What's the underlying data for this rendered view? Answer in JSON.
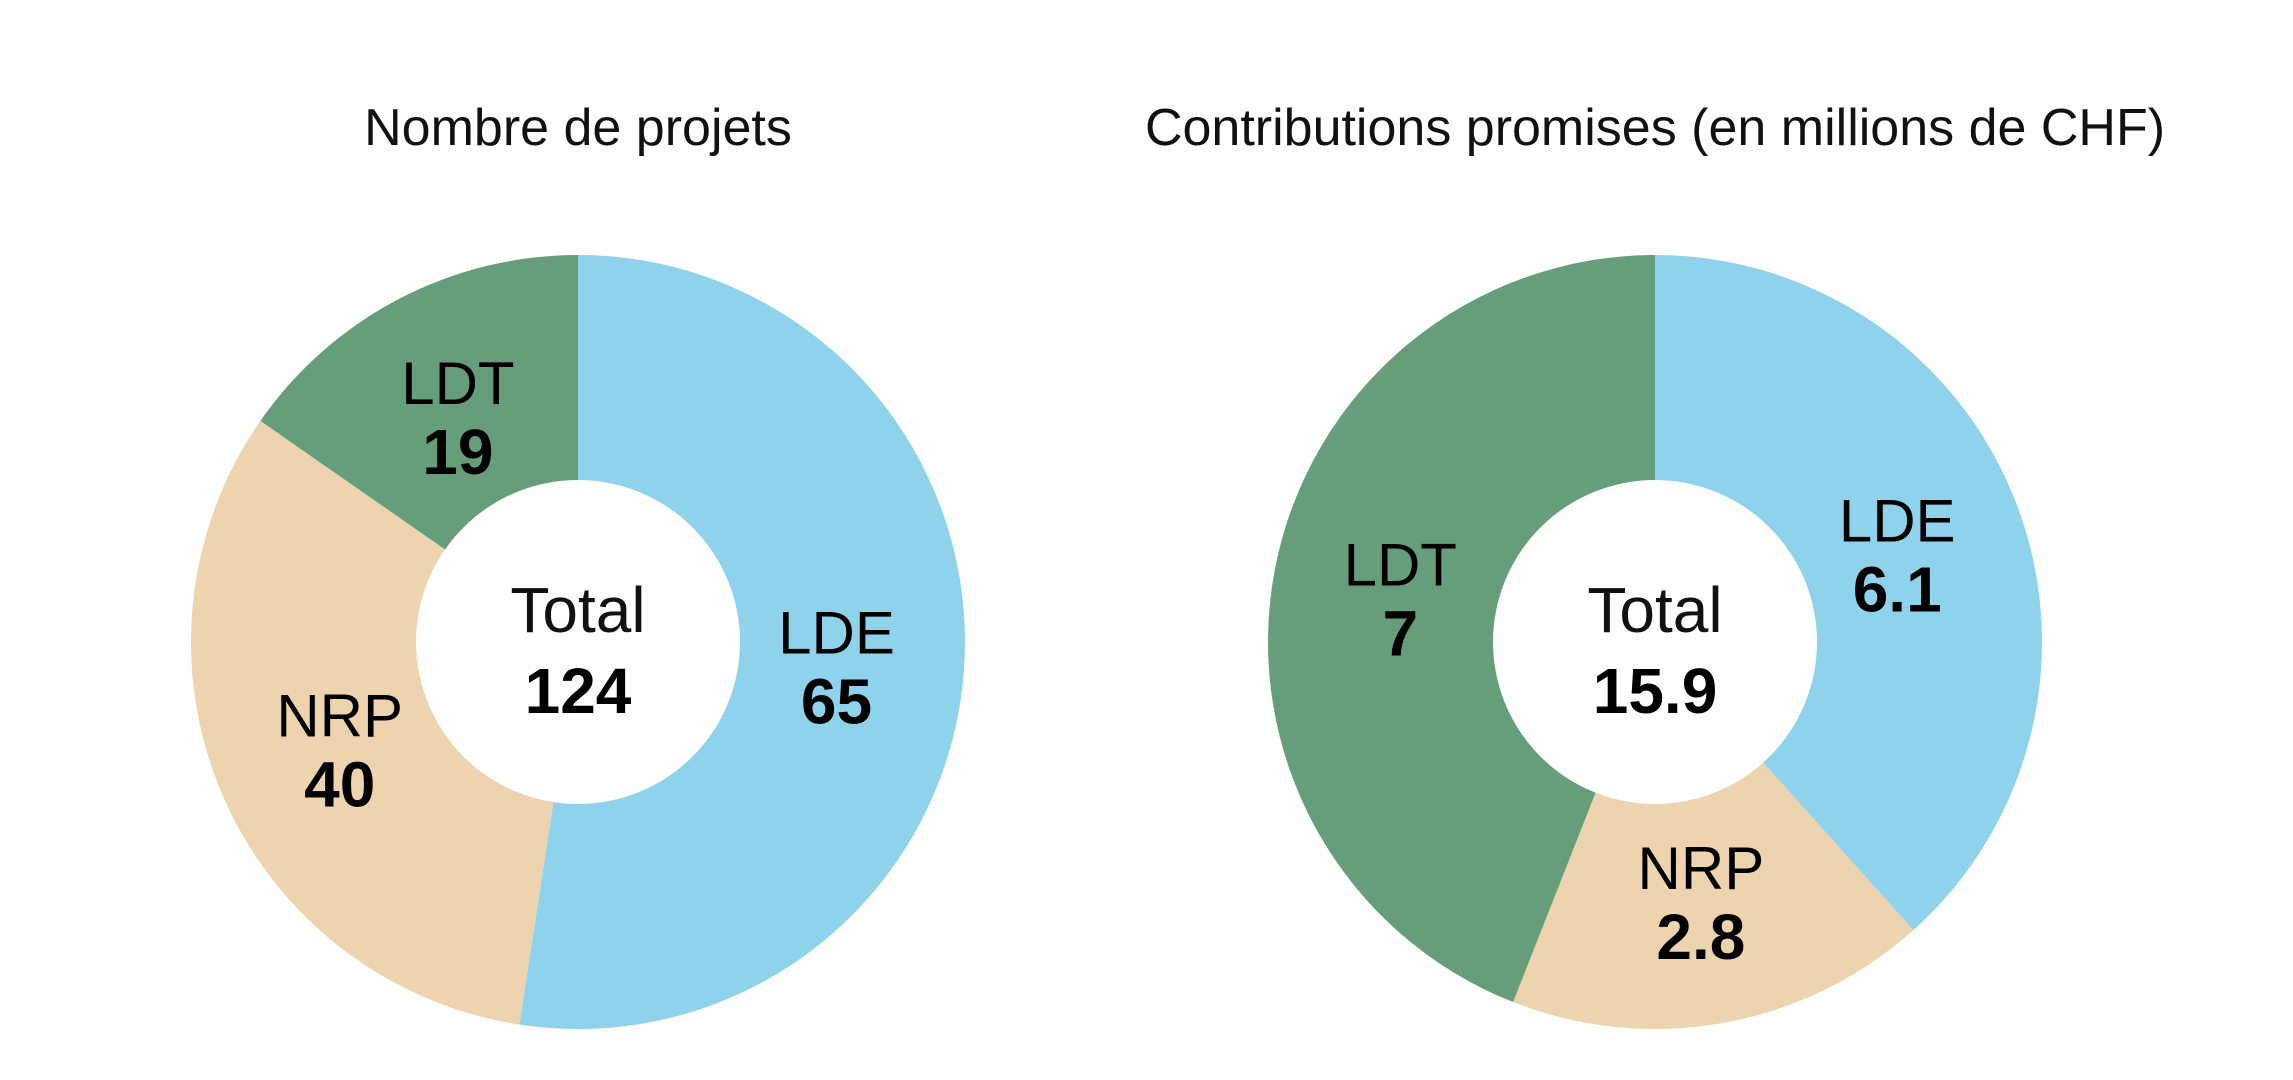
{
  "colors": {
    "LDE": "#8fd2ec",
    "NRP": "#edd3ae",
    "LDT": "#669e7b",
    "hole": "#ffffff"
  },
  "chart_data": [
    {
      "type": "pie",
      "title": "Nombre de projets",
      "categories": [
        "LDE",
        "NRP",
        "LDT"
      ],
      "values": [
        65,
        40,
        19
      ],
      "value_labels": [
        "65",
        "40",
        "19"
      ],
      "center_label": "Total",
      "center_value": "124",
      "legend": "none",
      "donut": true
    },
    {
      "type": "pie",
      "title": "Contributions promises (en millions de CHF)",
      "categories": [
        "LDE",
        "NRP",
        "LDT"
      ],
      "values": [
        6.1,
        2.8,
        7
      ],
      "value_labels": [
        "6.1",
        "2.8",
        "7"
      ],
      "center_label": "Total",
      "center_value": "15.9",
      "legend": "none",
      "donut": true
    }
  ]
}
